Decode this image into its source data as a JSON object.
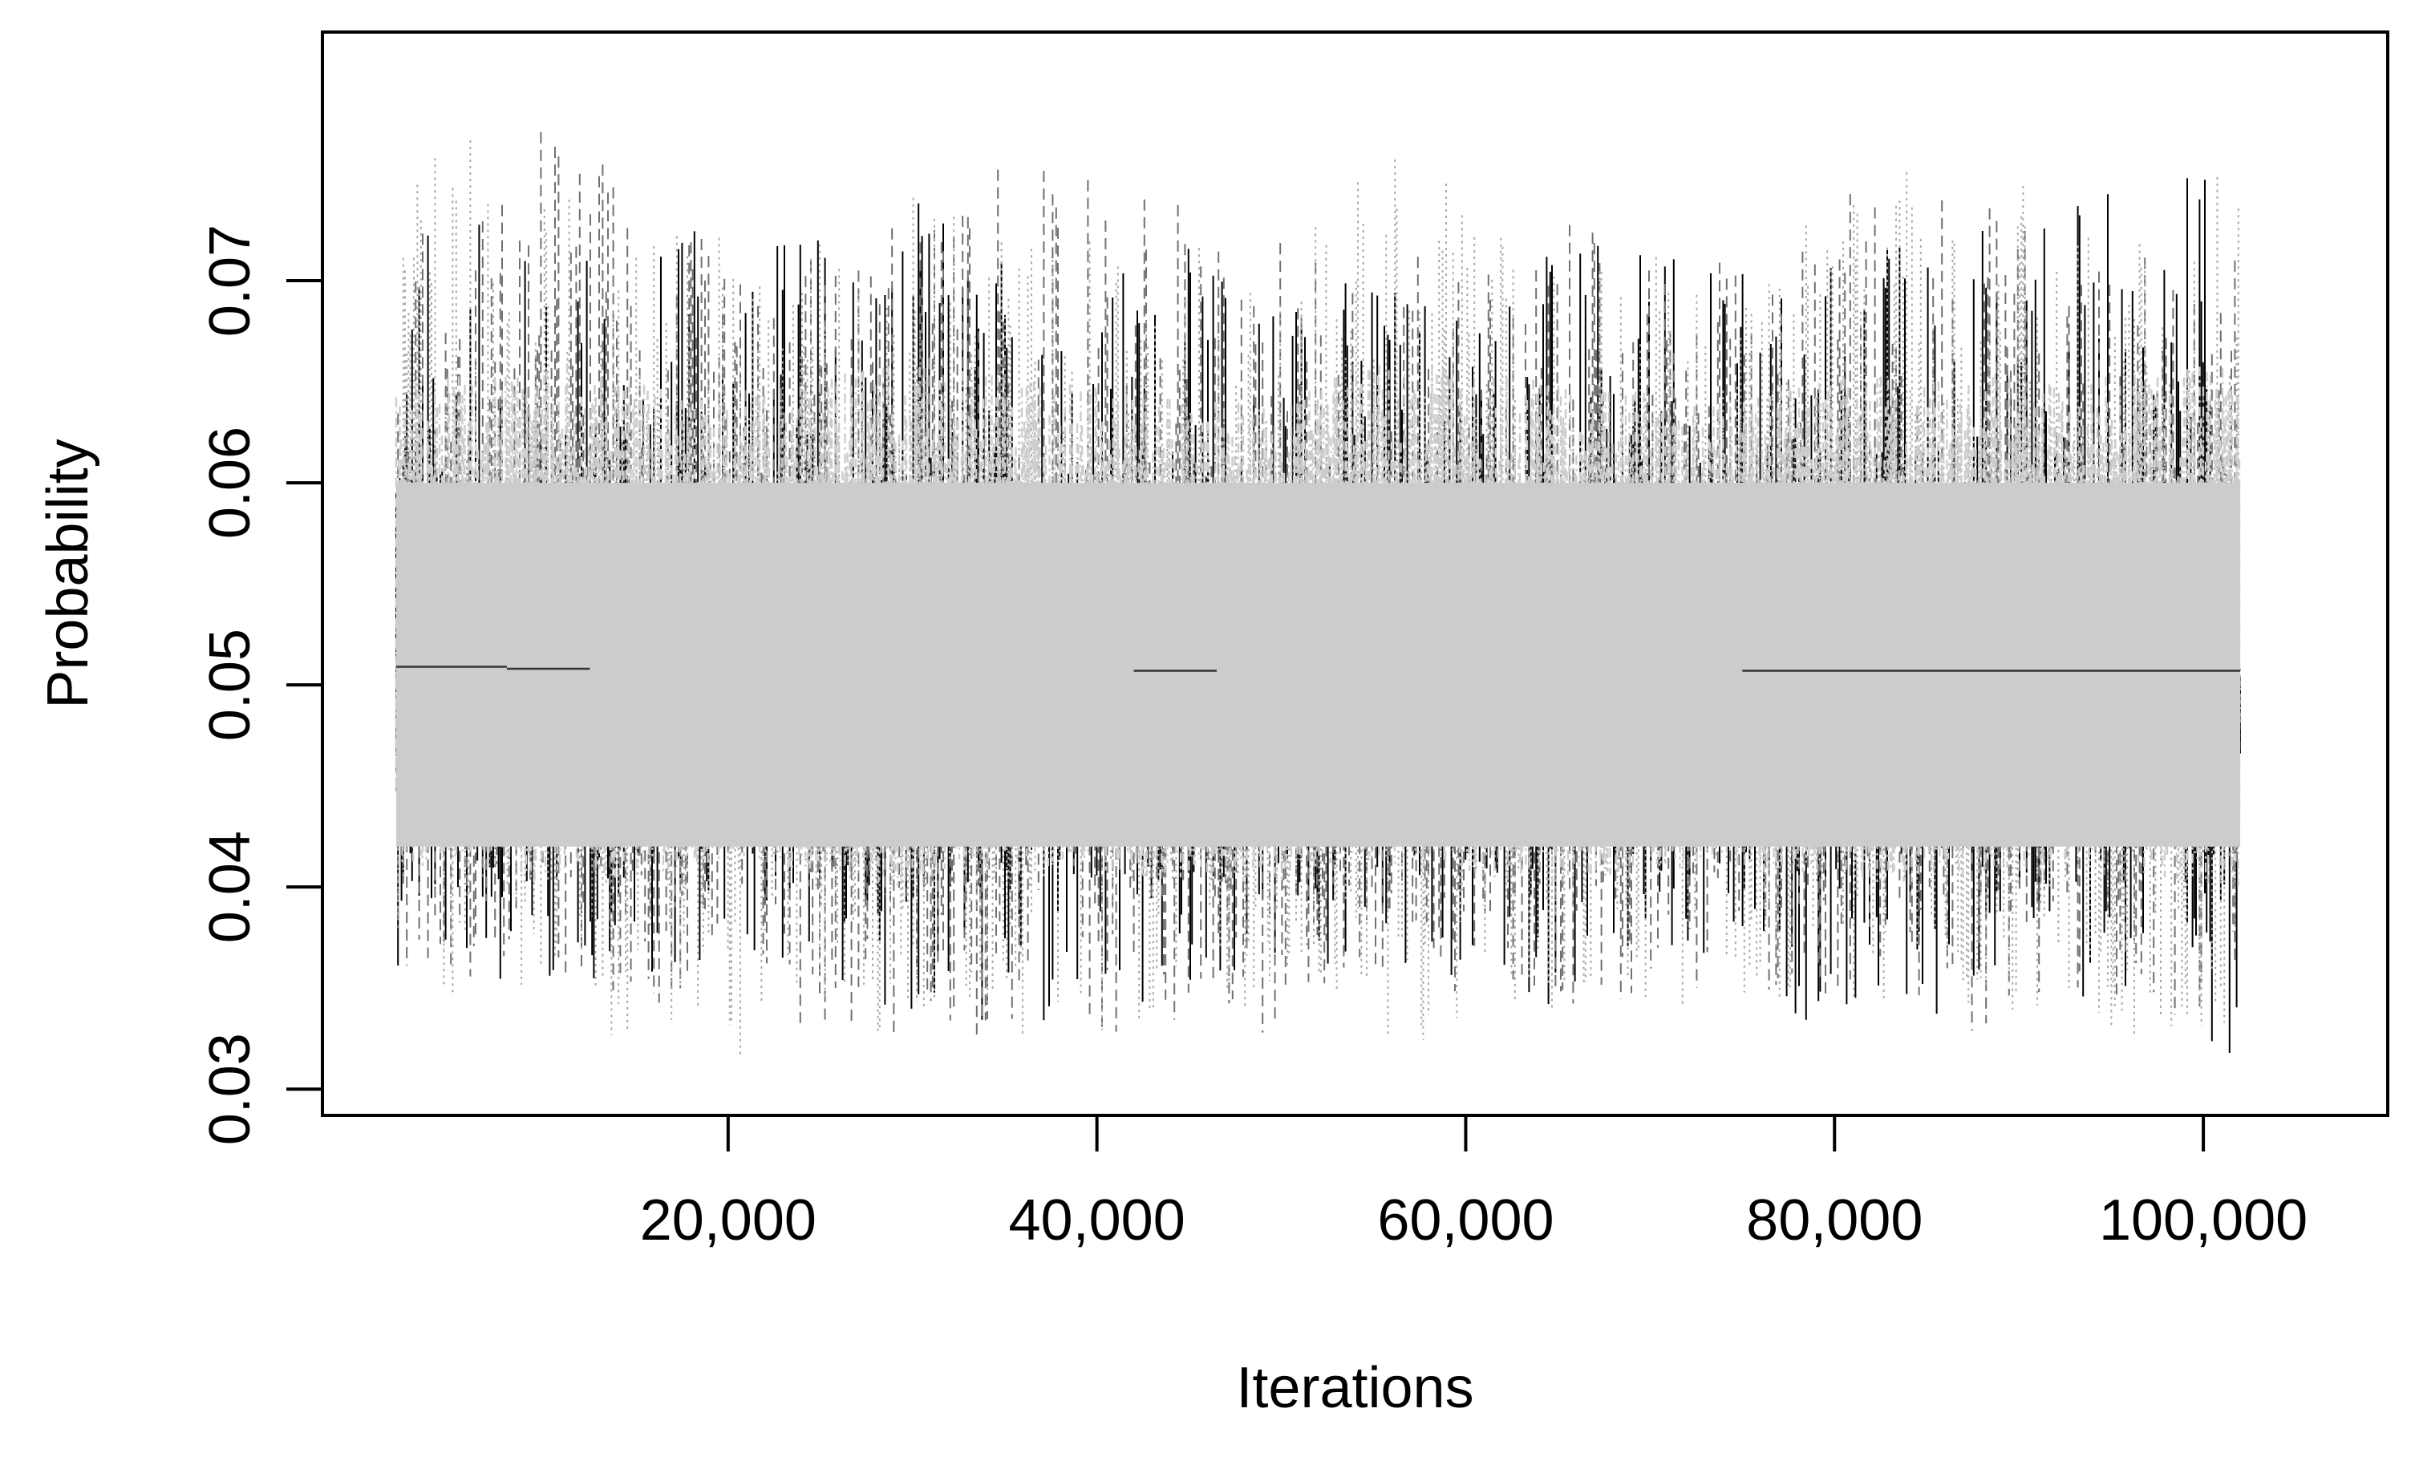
{
  "chart_data": {
    "type": "line",
    "title": "",
    "xlabel": "Iterations",
    "ylabel": "Probability",
    "xlim": [
      -2000,
      110000
    ],
    "ylim": [
      0.0287,
      0.0823
    ],
    "x_ticks": [
      20000,
      40000,
      60000,
      80000,
      100000
    ],
    "x_tick_labels": [
      "20,000",
      "40,000",
      "60,000",
      "80,000",
      "100,000"
    ],
    "y_ticks": [
      0.03,
      0.04,
      0.05,
      0.06,
      0.07
    ],
    "y_tick_labels": [
      "0.03",
      "0.04",
      "0.05",
      "0.06",
      "0.07"
    ],
    "x_range": [
      2000,
      102000
    ],
    "central_value": 0.05,
    "band": {
      "lower": 0.042,
      "upper": 0.06
    },
    "series_colors": [
      "#000000",
      "#707070",
      "#a8a8a8",
      "#cccccc"
    ],
    "series": [
      {
        "line_style": "solid",
        "color": "#000000",
        "x": [
          2000,
          11000,
          20000,
          29000,
          38000,
          47000,
          56000,
          65000,
          74000,
          83000,
          92000,
          102000
        ],
        "max": [
          0.074,
          0.072,
          0.073,
          0.075,
          0.071,
          0.072,
          0.071,
          0.072,
          0.071,
          0.073,
          0.074,
          0.077
        ],
        "min": [
          0.036,
          0.035,
          0.036,
          0.034,
          0.0305,
          0.035,
          0.035,
          0.034,
          0.034,
          0.0325,
          0.035,
          0.0315
        ]
      },
      {
        "line_style": "dashed",
        "color": "#707070",
        "x": [
          2000,
          11000,
          20000,
          29000,
          38000,
          47000,
          56000,
          65000,
          74000,
          83000,
          92000,
          102000
        ],
        "max": [
          0.072,
          0.079,
          0.071,
          0.073,
          0.077,
          0.074,
          0.071,
          0.073,
          0.071,
          0.077,
          0.072,
          0.071
        ],
        "min": [
          0.036,
          0.035,
          0.0335,
          0.031,
          0.033,
          0.032,
          0.035,
          0.034,
          0.035,
          0.0325,
          0.033,
          0.034
        ]
      },
      {
        "line_style": "dotted",
        "color": "#a8a8a8",
        "x": [
          2000,
          11000,
          20000,
          29000,
          38000,
          47000,
          56000,
          65000,
          74000,
          83000,
          92000,
          102000
        ],
        "max": [
          0.078,
          0.076,
          0.072,
          0.075,
          0.073,
          0.072,
          0.077,
          0.071,
          0.072,
          0.076,
          0.075,
          0.076
        ],
        "min": [
          0.035,
          0.0325,
          0.031,
          0.033,
          0.0325,
          0.034,
          0.032,
          0.034,
          0.034,
          0.034,
          0.0325,
          0.0325
        ]
      },
      {
        "line_style": "dotdash",
        "color": "#cccccc",
        "x": [
          2000,
          11000,
          20000,
          29000,
          38000,
          47000,
          56000,
          65000,
          74000,
          83000,
          92000,
          102000
        ],
        "max": [
          0.065,
          0.066,
          0.064,
          0.066,
          0.065,
          0.064,
          0.066,
          0.065,
          0.064,
          0.066,
          0.065,
          0.066
        ],
        "min": [
          0.041,
          0.04,
          0.041,
          0.04,
          0.041,
          0.04,
          0.041,
          0.04,
          0.041,
          0.04,
          0.041,
          0.04
        ]
      }
    ],
    "flat_segments": [
      {
        "x": [
          2000,
          8000
        ],
        "y": 0.0509
      },
      {
        "x": [
          8000,
          12500
        ],
        "y": 0.0508
      },
      {
        "x": [
          42000,
          46500
        ],
        "y": 0.0507
      },
      {
        "x": [
          75000,
          102000
        ],
        "y": 0.0507
      }
    ],
    "grid": false,
    "legend": "none"
  }
}
